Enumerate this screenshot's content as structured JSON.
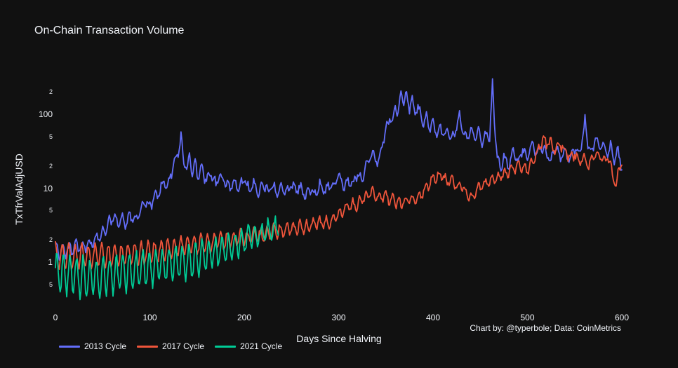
{
  "chart_data": {
    "type": "line",
    "title": "On-Chain Transaction Volume",
    "xlabel": "Days Since Halving",
    "ylabel": "TxTfrValAdjUSD",
    "credit": "Chart by: @typerbole; Data: CoinMetrics",
    "background_color": "#111111",
    "text_color": "#f2f5fa",
    "grid": false,
    "log_y": true,
    "xlim": [
      0,
      600
    ],
    "ylim": [
      0.24,
      350
    ],
    "legend_position": "bottom-left",
    "x_ticks": [
      {
        "label": "0",
        "day": 0
      },
      {
        "label": "100",
        "day": 100
      },
      {
        "label": "200",
        "day": 200
      },
      {
        "label": "300",
        "day": 300
      },
      {
        "label": "400",
        "day": 400
      },
      {
        "label": "500",
        "day": 500
      },
      {
        "label": "600",
        "day": 600
      }
    ],
    "y_ticks": [
      {
        "label": "2",
        "value": 200,
        "major": false
      },
      {
        "label": "100",
        "value": 100,
        "major": true
      },
      {
        "label": "5",
        "value": 50,
        "major": false
      },
      {
        "label": "2",
        "value": 20,
        "major": false
      },
      {
        "label": "10",
        "value": 10,
        "major": true
      },
      {
        "label": "5",
        "value": 5,
        "major": false
      },
      {
        "label": "2",
        "value": 2,
        "major": false
      },
      {
        "label": "1",
        "value": 1,
        "major": true
      },
      {
        "label": "5",
        "value": 0.5,
        "major": false
      }
    ],
    "series": [
      {
        "name": "2013 Cycle",
        "color": "#636EFA",
        "osc_period_days": 7,
        "osc_phase_days": 1,
        "jitter_amp_log10": 0.045,
        "seed": 3,
        "osc_amp_log10_anchors": [
          [
            0,
            0.1
          ],
          [
            60,
            0.07
          ],
          [
            130,
            0.05
          ],
          [
            600,
            0.05
          ]
        ],
        "trend_anchors_day_value": [
          [
            0,
            1.5
          ],
          [
            10,
            1.4
          ],
          [
            20,
            1.55
          ],
          [
            30,
            1.6
          ],
          [
            40,
            1.9
          ],
          [
            50,
            2.4
          ],
          [
            55,
            3.0
          ],
          [
            60,
            4.0
          ],
          [
            65,
            3.5
          ],
          [
            70,
            4.0
          ],
          [
            75,
            3.4
          ],
          [
            80,
            4.2
          ],
          [
            85,
            3.8
          ],
          [
            90,
            5.0
          ],
          [
            95,
            6.3
          ],
          [
            100,
            5.6
          ],
          [
            105,
            7.5
          ],
          [
            110,
            9
          ],
          [
            115,
            12
          ],
          [
            118,
            10
          ],
          [
            122,
            15
          ],
          [
            126,
            22
          ],
          [
            130,
            32
          ],
          [
            133,
            48
          ],
          [
            136,
            24
          ],
          [
            139,
            18
          ],
          [
            142,
            26
          ],
          [
            145,
            17
          ],
          [
            148,
            22
          ],
          [
            151,
            14
          ],
          [
            155,
            18
          ],
          [
            160,
            12.5
          ],
          [
            165,
            16
          ],
          [
            170,
            11
          ],
          [
            175,
            14.5
          ],
          [
            180,
            12.5
          ],
          [
            185,
            9.5
          ],
          [
            190,
            12.5
          ],
          [
            195,
            10
          ],
          [
            200,
            13.5
          ],
          [
            205,
            9.5
          ],
          [
            210,
            12
          ],
          [
            215,
            8.8
          ],
          [
            220,
            11.5
          ],
          [
            225,
            9
          ],
          [
            230,
            11
          ],
          [
            235,
            8.2
          ],
          [
            240,
            11
          ],
          [
            245,
            8.6
          ],
          [
            250,
            11.5
          ],
          [
            255,
            9
          ],
          [
            260,
            10.5
          ],
          [
            265,
            7.8
          ],
          [
            270,
            10
          ],
          [
            275,
            8.2
          ],
          [
            280,
            11.5
          ],
          [
            285,
            9
          ],
          [
            290,
            11
          ],
          [
            295,
            9.5
          ],
          [
            300,
            15.5
          ],
          [
            305,
            10
          ],
          [
            310,
            12.5
          ],
          [
            315,
            11
          ],
          [
            320,
            16.5
          ],
          [
            325,
            12
          ],
          [
            330,
            23
          ],
          [
            336,
            30
          ],
          [
            342,
            22
          ],
          [
            346,
            38
          ],
          [
            350,
            62
          ],
          [
            354,
            95
          ],
          [
            357,
            78
          ],
          [
            360,
            125
          ],
          [
            363,
            100
          ],
          [
            366,
            205
          ],
          [
            369,
            145
          ],
          [
            372,
            175
          ],
          [
            375,
            125
          ],
          [
            378,
            155
          ],
          [
            381,
            108
          ],
          [
            384,
            135
          ],
          [
            387,
            92
          ],
          [
            390,
            78
          ],
          [
            393,
            98
          ],
          [
            396,
            63
          ],
          [
            400,
            78
          ],
          [
            404,
            54
          ],
          [
            408,
            68
          ],
          [
            412,
            50
          ],
          [
            416,
            60
          ],
          [
            420,
            47
          ],
          [
            424,
            62
          ],
          [
            428,
            98
          ],
          [
            432,
            58
          ],
          [
            436,
            44
          ],
          [
            440,
            68
          ],
          [
            444,
            47
          ],
          [
            448,
            58
          ],
          [
            452,
            41
          ],
          [
            456,
            53
          ],
          [
            460,
            47
          ],
          [
            463,
            265
          ],
          [
            465,
            85
          ],
          [
            468,
            28
          ],
          [
            471,
            17.5
          ],
          [
            475,
            27
          ],
          [
            480,
            19.5
          ],
          [
            485,
            31
          ],
          [
            490,
            23
          ],
          [
            495,
            35
          ],
          [
            500,
            25
          ],
          [
            505,
            41
          ],
          [
            510,
            27
          ],
          [
            515,
            37
          ],
          [
            520,
            29
          ],
          [
            525,
            23.5
          ],
          [
            530,
            37
          ],
          [
            535,
            26
          ],
          [
            540,
            31
          ],
          [
            545,
            25.5
          ],
          [
            550,
            35
          ],
          [
            555,
            29
          ],
          [
            558,
            44
          ],
          [
            561,
            80
          ],
          [
            564,
            39
          ],
          [
            568,
            29
          ],
          [
            572,
            47
          ],
          [
            576,
            33
          ],
          [
            580,
            43
          ],
          [
            584,
            29
          ],
          [
            588,
            37
          ],
          [
            592,
            25
          ],
          [
            596,
            31
          ],
          [
            600,
            19
          ]
        ]
      },
      {
        "name": "2017 Cycle",
        "color": "#EF553B",
        "osc_period_days": 7,
        "osc_phase_days": 1.75,
        "jitter_amp_log10": 0.04,
        "seed": 5,
        "osc_amp_log10_anchors": [
          [
            0,
            0.17
          ],
          [
            120,
            0.13
          ],
          [
            250,
            0.08
          ],
          [
            400,
            0.06
          ],
          [
            600,
            0.05
          ]
        ],
        "trend_anchors_day_value": [
          [
            0,
            1.25
          ],
          [
            30,
            1.2
          ],
          [
            60,
            1.2
          ],
          [
            90,
            1.3
          ],
          [
            120,
            1.5
          ],
          [
            150,
            1.7
          ],
          [
            180,
            1.95
          ],
          [
            210,
            2.25
          ],
          [
            240,
            2.7
          ],
          [
            270,
            3.1
          ],
          [
            290,
            3.5
          ],
          [
            300,
            4.4
          ],
          [
            310,
            5.6
          ],
          [
            320,
            6.0
          ],
          [
            330,
            8.0
          ],
          [
            335,
            8.8
          ],
          [
            340,
            7.6
          ],
          [
            350,
            7.6
          ],
          [
            360,
            6.8
          ],
          [
            365,
            6.0
          ],
          [
            370,
            6.8
          ],
          [
            380,
            7.2
          ],
          [
            390,
            8.8
          ],
          [
            395,
            11
          ],
          [
            400,
            14
          ],
          [
            410,
            15
          ],
          [
            415,
            12.5
          ],
          [
            420,
            13.5
          ],
          [
            425,
            10.5
          ],
          [
            430,
            11.5
          ],
          [
            435,
            8.2
          ],
          [
            440,
            7.4
          ],
          [
            445,
            9
          ],
          [
            450,
            10.5
          ],
          [
            460,
            12.5
          ],
          [
            470,
            14.5
          ],
          [
            480,
            16.5
          ],
          [
            490,
            20
          ],
          [
            500,
            18
          ],
          [
            505,
            22
          ],
          [
            510,
            30
          ],
          [
            517,
            48
          ],
          [
            520,
            38
          ],
          [
            524,
            44
          ],
          [
            528,
            33
          ],
          [
            535,
            38
          ],
          [
            540,
            32
          ],
          [
            545,
            25
          ],
          [
            550,
            29
          ],
          [
            555,
            22
          ],
          [
            560,
            26
          ],
          [
            565,
            20
          ],
          [
            570,
            27
          ],
          [
            575,
            29
          ],
          [
            580,
            23
          ],
          [
            585,
            26
          ],
          [
            590,
            17
          ],
          [
            594,
            10.5
          ],
          [
            597,
            21
          ],
          [
            600,
            20
          ]
        ]
      },
      {
        "name": "2021 Cycle",
        "color": "#00CC96",
        "osc_period_days": 7,
        "osc_phase_days": 0.35,
        "jitter_amp_log10": 0.06,
        "seed": 9,
        "osc_amp_log10_anchors": [
          [
            0,
            0.27
          ],
          [
            150,
            0.22
          ],
          [
            200,
            0.16
          ],
          [
            236,
            0.12
          ]
        ],
        "trend_anchors_day_value": [
          [
            0,
            0.75
          ],
          [
            20,
            0.68
          ],
          [
            40,
            0.58
          ],
          [
            60,
            0.68
          ],
          [
            80,
            0.75
          ],
          [
            100,
            0.85
          ],
          [
            120,
            0.95
          ],
          [
            140,
            1.05
          ],
          [
            160,
            1.2
          ],
          [
            180,
            1.5
          ],
          [
            200,
            1.95
          ],
          [
            220,
            2.5
          ],
          [
            236,
            3.0
          ]
        ]
      }
    ]
  }
}
